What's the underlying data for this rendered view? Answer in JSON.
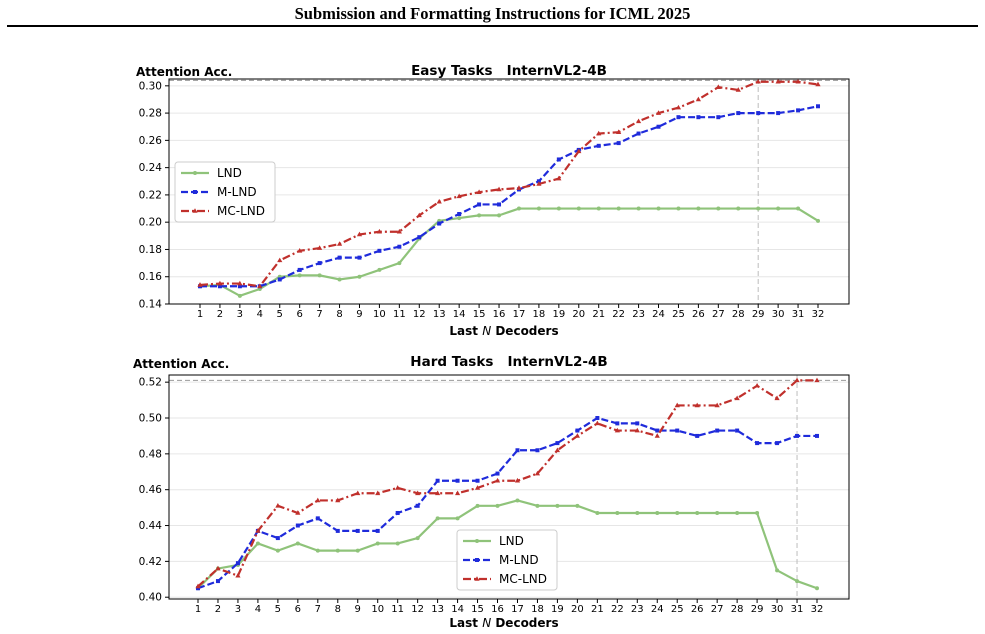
{
  "page": {
    "header_title": "Submission and Formatting Instructions for ICML 2025"
  },
  "chart_data": [
    {
      "type": "line",
      "title": "Easy Tasks   InternVL2-4B",
      "ylabel": "Attention Acc.",
      "xlabel": "Last N Decoders",
      "xlabel_parts": [
        "Last ",
        "N",
        " Decoders"
      ],
      "ylim": [
        0.14,
        0.305
      ],
      "yticks": [
        0.14,
        0.16,
        0.18,
        0.2,
        0.22,
        0.24,
        0.26,
        0.28,
        0.3
      ],
      "ytick_labels": [
        "0.14",
        "0.16",
        "0.18",
        "0.20",
        "0.22",
        "0.24",
        "0.26",
        "0.28",
        "0.30"
      ],
      "x": [
        1,
        2,
        3,
        4,
        5,
        6,
        7,
        8,
        9,
        10,
        11,
        12,
        13,
        14,
        15,
        16,
        17,
        18,
        19,
        20,
        21,
        22,
        23,
        24,
        25,
        26,
        27,
        28,
        29,
        30,
        31,
        32
      ],
      "xtick_labels": [
        "1",
        "2",
        "3",
        "4",
        "5",
        "6",
        "7",
        "8",
        "9",
        "10",
        "11",
        "12",
        "13",
        "14",
        "15",
        "16",
        "17",
        "18",
        "19",
        "20",
        "21",
        "22",
        "23",
        "24",
        "25",
        "26",
        "27",
        "28",
        "29",
        "30",
        "31",
        "32"
      ],
      "grid": "horizontal",
      "legend_position": "left",
      "reference_lines": {
        "hline": 0.304,
        "vline": 29
      },
      "series": [
        {
          "name": "LND",
          "color": "#8fc37a",
          "style": "solid",
          "marker": "circle",
          "values": [
            0.153,
            0.154,
            0.146,
            0.151,
            0.16,
            0.161,
            0.161,
            0.158,
            0.16,
            0.165,
            0.17,
            0.188,
            0.201,
            0.203,
            0.205,
            0.205,
            0.21,
            0.21,
            0.21,
            0.21,
            0.21,
            0.21,
            0.21,
            0.21,
            0.21,
            0.21,
            0.21,
            0.21,
            0.21,
            0.21,
            0.21,
            0.201
          ]
        },
        {
          "name": "M-LND",
          "color": "#1f2bdb",
          "style": "dashed",
          "marker": "square",
          "values": [
            0.153,
            0.153,
            0.153,
            0.153,
            0.158,
            0.165,
            0.17,
            0.174,
            0.174,
            0.179,
            0.182,
            0.189,
            0.199,
            0.206,
            0.213,
            0.213,
            0.224,
            0.23,
            0.246,
            0.253,
            0.256,
            0.258,
            0.265,
            0.27,
            0.277,
            0.277,
            0.277,
            0.28,
            0.28,
            0.28,
            0.282,
            0.285
          ]
        },
        {
          "name": "MC-LND",
          "color": "#c0302c",
          "style": "dashdot",
          "marker": "triangle",
          "values": [
            0.154,
            0.155,
            0.155,
            0.153,
            0.172,
            0.179,
            0.181,
            0.184,
            0.191,
            0.193,
            0.193,
            0.205,
            0.215,
            0.219,
            0.222,
            0.224,
            0.225,
            0.228,
            0.232,
            0.252,
            0.265,
            0.266,
            0.274,
            0.28,
            0.284,
            0.29,
            0.299,
            0.297,
            0.303,
            0.303,
            0.303,
            0.301
          ]
        }
      ]
    },
    {
      "type": "line",
      "title": "Hard Tasks   InternVL2-4B",
      "ylabel": "Attention Acc.",
      "xlabel": "Last N Decoders",
      "xlabel_parts": [
        "Last ",
        "N",
        " Decoders"
      ],
      "ylim": [
        0.399,
        0.524
      ],
      "yticks": [
        0.4,
        0.42,
        0.44,
        0.46,
        0.48,
        0.5,
        0.52
      ],
      "ytick_labels": [
        "0.40",
        "0.42",
        "0.44",
        "0.46",
        "0.48",
        "0.50",
        "0.52"
      ],
      "x": [
        1,
        2,
        3,
        4,
        5,
        6,
        7,
        8,
        9,
        10,
        11,
        12,
        13,
        14,
        15,
        16,
        17,
        18,
        19,
        20,
        21,
        22,
        23,
        24,
        25,
        26,
        27,
        28,
        29,
        30,
        31,
        32
      ],
      "xtick_labels": [
        "1",
        "2",
        "3",
        "4",
        "5",
        "6",
        "7",
        "8",
        "9",
        "10",
        "11",
        "12",
        "13",
        "14",
        "15",
        "16",
        "17",
        "18",
        "19",
        "20",
        "21",
        "22",
        "23",
        "24",
        "25",
        "26",
        "27",
        "28",
        "29",
        "30",
        "31",
        "32"
      ],
      "grid": "horizontal",
      "legend_position": "bottom-center",
      "reference_lines": {
        "hline": 0.521,
        "vline": 31
      },
      "series": [
        {
          "name": "LND",
          "color": "#8fc37a",
          "style": "solid",
          "marker": "circle",
          "values": [
            0.405,
            0.416,
            0.418,
            0.43,
            0.426,
            0.43,
            0.426,
            0.426,
            0.426,
            0.43,
            0.43,
            0.433,
            0.444,
            0.444,
            0.451,
            0.451,
            0.454,
            0.451,
            0.451,
            0.451,
            0.447,
            0.447,
            0.447,
            0.447,
            0.447,
            0.447,
            0.447,
            0.447,
            0.447,
            0.415,
            0.409,
            0.405
          ]
        },
        {
          "name": "M-LND",
          "color": "#1f2bdb",
          "style": "dashed",
          "marker": "square",
          "values": [
            0.405,
            0.409,
            0.419,
            0.437,
            0.433,
            0.44,
            0.444,
            0.437,
            0.437,
            0.437,
            0.447,
            0.451,
            0.465,
            0.465,
            0.465,
            0.469,
            0.482,
            0.482,
            0.486,
            0.493,
            0.5,
            0.497,
            0.497,
            0.493,
            0.493,
            0.49,
            0.493,
            0.493,
            0.486,
            0.486,
            0.49,
            0.49
          ]
        },
        {
          "name": "MC-LND",
          "color": "#c0302c",
          "style": "dashdot",
          "marker": "triangle",
          "values": [
            0.406,
            0.416,
            0.412,
            0.437,
            0.451,
            0.447,
            0.454,
            0.454,
            0.458,
            0.458,
            0.461,
            0.458,
            0.458,
            0.458,
            0.461,
            0.465,
            0.465,
            0.469,
            0.482,
            0.49,
            0.497,
            0.493,
            0.493,
            0.49,
            0.507,
            0.507,
            0.507,
            0.511,
            0.518,
            0.511,
            0.521,
            0.521
          ]
        }
      ]
    }
  ]
}
